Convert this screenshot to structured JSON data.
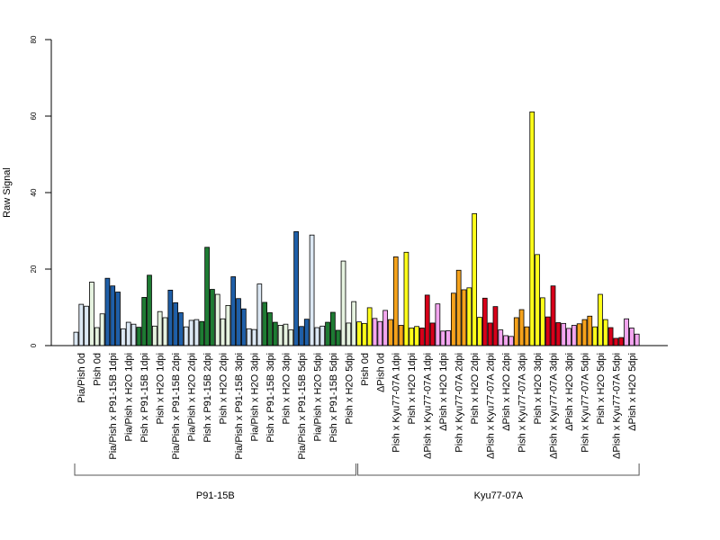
{
  "chart_data": {
    "type": "bar",
    "ylabel": "Raw Signal",
    "ylim": [
      0,
      80
    ],
    "yticks": [
      0,
      20,
      40,
      60,
      80
    ],
    "grid": false,
    "legend": "none",
    "bars_per_category": 3,
    "categories": [
      {
        "label": "Pia/Pish 0d",
        "values": [
          3.5,
          10.8,
          10.3
        ],
        "color": "#DCE8F4"
      },
      {
        "label": "Pish 0d",
        "values": [
          16.6,
          4.7,
          8.3
        ],
        "color": "#E6F3E0"
      },
      {
        "label": "Pia/Pish x P91-15B 1dpi",
        "values": [
          17.6,
          15.6,
          14.0
        ],
        "color": "#1F5FA8"
      },
      {
        "label": "Pia/Pish x H2O 1dpi",
        "values": [
          4.4,
          6.1,
          5.6
        ],
        "color": "#DCE8F4"
      },
      {
        "label": "Pish x P91-15B 1dpi",
        "values": [
          4.8,
          12.6,
          18.4
        ],
        "color": "#1E7B33"
      },
      {
        "label": "Pish x H2O 1dpi",
        "values": [
          5.1,
          8.9,
          7.3
        ],
        "color": "#E6F3E0"
      },
      {
        "label": "Pia/Pish x P91-15B 2dpi",
        "values": [
          14.5,
          11.2,
          8.6
        ],
        "color": "#1F5FA8"
      },
      {
        "label": "Pia/Pish x H2O 2dpi",
        "values": [
          4.9,
          6.6,
          6.8
        ],
        "color": "#DCE8F4"
      },
      {
        "label": "Pish x P91-15B 2dpi",
        "values": [
          6.3,
          25.7,
          14.7
        ],
        "color": "#1E7B33"
      },
      {
        "label": "Pish x H2O 2dpi",
        "values": [
          13.4,
          7.0,
          10.5
        ],
        "color": "#E6F3E0"
      },
      {
        "label": "Pia/Pish x P91-15B 3dpi",
        "values": [
          18.0,
          12.3,
          9.6
        ],
        "color": "#1F5FA8"
      },
      {
        "label": "Pia/Pish x H2O 3dpi",
        "values": [
          4.4,
          4.2,
          16.1
        ],
        "color": "#DCE8F4"
      },
      {
        "label": "Pish x P91-15B 3dpi",
        "values": [
          11.3,
          8.6,
          6.1
        ],
        "color": "#1E7B33"
      },
      {
        "label": "Pish x H2O 3dpi",
        "values": [
          5.3,
          5.6,
          4.1
        ],
        "color": "#E6F3E0"
      },
      {
        "label": "Pia/Pish x P91-15B 5dpi",
        "values": [
          29.8,
          5.0,
          6.9
        ],
        "color": "#1F5FA8"
      },
      {
        "label": "Pia/Pish x H2O 5dpi",
        "values": [
          28.9,
          4.7,
          5.1
        ],
        "color": "#DCE8F4"
      },
      {
        "label": "Pish x P91-15B 5dpi",
        "values": [
          6.1,
          8.7,
          4.0
        ],
        "color": "#1E7B33"
      },
      {
        "label": "Pish x H2O 5dpi",
        "values": [
          22.1,
          5.9,
          11.5
        ],
        "color": "#E6F3E0"
      },
      {
        "label": "Pish 0d",
        "values": [
          6.2,
          5.8,
          9.9
        ],
        "color": "#FFFF1A"
      },
      {
        "label": "ΔPish 0d",
        "values": [
          7.1,
          6.3,
          9.2
        ],
        "color": "#F4A6F0"
      },
      {
        "label": "Pish x Kyu77-07A 1dpi",
        "values": [
          6.8,
          23.2,
          5.3
        ],
        "color": "#F5A21C"
      },
      {
        "label": "Pish x H2O 1dpi",
        "values": [
          24.4,
          4.6,
          5.0
        ],
        "color": "#FFFF1A"
      },
      {
        "label": "ΔPish x Kyu77-07A 1dpi",
        "values": [
          4.6,
          13.2,
          5.9
        ],
        "color": "#D7001A"
      },
      {
        "label": "ΔPish x H2O 1dpi",
        "values": [
          10.9,
          3.8,
          3.9
        ],
        "color": "#F4A6F0"
      },
      {
        "label": "Pish x Kyu77-07A 2dpi",
        "values": [
          13.7,
          19.7,
          14.6
        ],
        "color": "#F5A21C"
      },
      {
        "label": "Pish x H2O 2dpi",
        "values": [
          15.1,
          34.5,
          7.4
        ],
        "color": "#FFFF1A"
      },
      {
        "label": "ΔPish x Kyu77-07A 2dpi",
        "values": [
          12.4,
          5.9,
          10.2
        ],
        "color": "#D7001A"
      },
      {
        "label": "ΔPish x H2O 2dpi",
        "values": [
          4.1,
          2.6,
          2.4
        ],
        "color": "#F4A6F0"
      },
      {
        "label": "Pish x Kyu77-07A 3dpi",
        "values": [
          7.3,
          9.4,
          4.9
        ],
        "color": "#F5A21C"
      },
      {
        "label": "Pish x H2O 3dpi",
        "values": [
          61.1,
          23.8,
          12.5
        ],
        "color": "#FFFF1A"
      },
      {
        "label": "ΔPish x Kyu77-07A 3dpi",
        "values": [
          7.5,
          15.6,
          6.0
        ],
        "color": "#D7001A"
      },
      {
        "label": "ΔPish x H2O 3dpi",
        "values": [
          5.8,
          4.5,
          5.3
        ],
        "color": "#F4A6F0"
      },
      {
        "label": "Pish x Kyu77-07A 5dpi",
        "values": [
          5.7,
          6.8,
          7.7
        ],
        "color": "#F5A21C"
      },
      {
        "label": "Pish x H2O 5dpi",
        "values": [
          4.9,
          13.4,
          6.8
        ],
        "color": "#FFFF1A"
      },
      {
        "label": "ΔPish x Kyu77-07A 5dpi",
        "values": [
          4.7,
          1.9,
          2.1
        ],
        "color": "#D7001A"
      },
      {
        "label": "ΔPish x H2O 5dpi",
        "values": [
          7.0,
          4.6,
          3.0
        ],
        "color": "#F4A6F0"
      }
    ],
    "groups": [
      {
        "label": "P91-15B",
        "first_category": 0,
        "last_category": 17
      },
      {
        "label": "Kyu77-07A",
        "first_category": 18,
        "last_category": 35
      }
    ]
  }
}
